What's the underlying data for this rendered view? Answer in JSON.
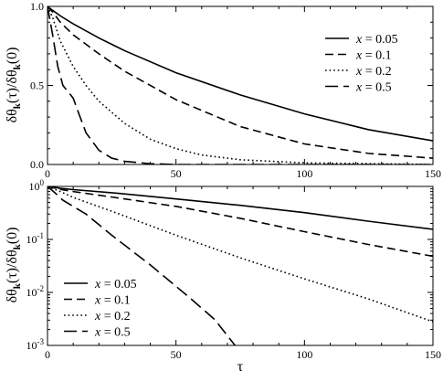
{
  "chart_data": [
    {
      "type": "line",
      "panel": "top",
      "xlabel": "",
      "ylabel": "δθk(τ)/δθk(0)",
      "ylabel_main": "δθ",
      "ylabel_sub": "k",
      "ylabel_mid": "(τ)/δθ",
      "ylabel_sub2": "k",
      "ylabel_end": "(0)",
      "xlim": [
        0,
        150
      ],
      "ylim": [
        0,
        1
      ],
      "yscale": "linear",
      "xticks": [
        "0",
        "50",
        "100",
        "150"
      ],
      "xtick_values": [
        0,
        50,
        100,
        150
      ],
      "yticks": [
        "0.0",
        "0.5",
        "1.0"
      ],
      "ytick_values": [
        0,
        0.5,
        1
      ],
      "legend_position": "top-right",
      "series": [
        {
          "name": "x = 0.05",
          "var": "x",
          "eq": " = 0.05",
          "dash": "solid",
          "x": [
            0,
            2,
            5,
            10,
            20,
            30,
            50,
            75,
            100,
            125,
            150
          ],
          "values": [
            1.0,
            0.975,
            0.94,
            0.89,
            0.8,
            0.72,
            0.58,
            0.44,
            0.32,
            0.22,
            0.15
          ]
        },
        {
          "name": "x = 0.1",
          "var": "x",
          "eq": " = 0.1",
          "dash": "dashed",
          "x": [
            0,
            2,
            5,
            10,
            20,
            30,
            50,
            75,
            100,
            125,
            150
          ],
          "values": [
            1.0,
            0.965,
            0.9,
            0.82,
            0.7,
            0.59,
            0.41,
            0.24,
            0.13,
            0.07,
            0.04
          ]
        },
        {
          "name": "x = 0.2",
          "var": "x",
          "eq": " = 0.2",
          "dash": "dotted",
          "x": [
            0,
            2,
            5,
            10,
            15,
            20,
            30,
            40,
            50,
            60,
            75,
            100,
            150
          ],
          "values": [
            1.0,
            0.93,
            0.78,
            0.62,
            0.5,
            0.4,
            0.26,
            0.16,
            0.1,
            0.06,
            0.03,
            0.01,
            0.0
          ]
        },
        {
          "name": "x = 0.5",
          "var": "x",
          "eq": " = 0.5",
          "dash": "longdash",
          "x": [
            0,
            2,
            4,
            6,
            8,
            10,
            12,
            15,
            20,
            25,
            30,
            40,
            50,
            75,
            150
          ],
          "values": [
            1.0,
            0.82,
            0.62,
            0.5,
            0.46,
            0.42,
            0.33,
            0.2,
            0.09,
            0.04,
            0.02,
            0.005,
            0.0,
            0.0,
            0.0
          ]
        }
      ]
    },
    {
      "type": "line",
      "panel": "bottom",
      "xlabel": "τ",
      "ylabel": "δθk(τ)/δθk(0)",
      "ylabel_main": "δθ",
      "ylabel_sub": "k",
      "ylabel_mid": "(τ)/δθ",
      "ylabel_sub2": "k",
      "ylabel_end": "(0)",
      "xlim": [
        0,
        150
      ],
      "ylim": [
        0.001,
        1
      ],
      "yscale": "log",
      "xticks": [
        "0",
        "50",
        "100",
        "150"
      ],
      "xtick_values": [
        0,
        50,
        100,
        150
      ],
      "yticks": [
        {
          "base": "10",
          "exp": "0",
          "value": 1
        },
        {
          "base": "10",
          "exp": "-1",
          "value": 0.1
        },
        {
          "base": "10",
          "exp": "-2",
          "value": 0.01
        },
        {
          "base": "10",
          "exp": "-3",
          "value": 0.001
        }
      ],
      "legend_position": "bottom-left",
      "series": [
        {
          "name": "x = 0.05",
          "var": "x",
          "eq": " = 0.05",
          "dash": "solid",
          "x": [
            0,
            5,
            10,
            25,
            50,
            75,
            100,
            125,
            150
          ],
          "values": [
            1.0,
            0.92,
            0.87,
            0.76,
            0.58,
            0.44,
            0.32,
            0.22,
            0.155
          ]
        },
        {
          "name": "x = 0.1",
          "var": "x",
          "eq": " = 0.1",
          "dash": "dashed",
          "x": [
            0,
            5,
            10,
            25,
            50,
            75,
            100,
            125,
            150
          ],
          "values": [
            1.0,
            0.88,
            0.8,
            0.63,
            0.42,
            0.25,
            0.14,
            0.08,
            0.048
          ]
        },
        {
          "name": "x = 0.2",
          "var": "x",
          "eq": " = 0.2",
          "dash": "dotted",
          "x": [
            0,
            5,
            10,
            25,
            50,
            75,
            100,
            125,
            150
          ],
          "values": [
            1.0,
            0.8,
            0.62,
            0.34,
            0.12,
            0.045,
            0.018,
            0.0075,
            0.0028
          ]
        },
        {
          "name": "x = 0.5",
          "var": "x",
          "eq": " = 0.5",
          "dash": "longdash",
          "x": [
            0,
            3,
            6,
            10,
            15,
            25,
            40,
            55,
            65,
            73
          ],
          "values": [
            1.0,
            0.75,
            0.55,
            0.42,
            0.3,
            0.12,
            0.033,
            0.0082,
            0.0031,
            0.001
          ]
        }
      ]
    }
  ]
}
